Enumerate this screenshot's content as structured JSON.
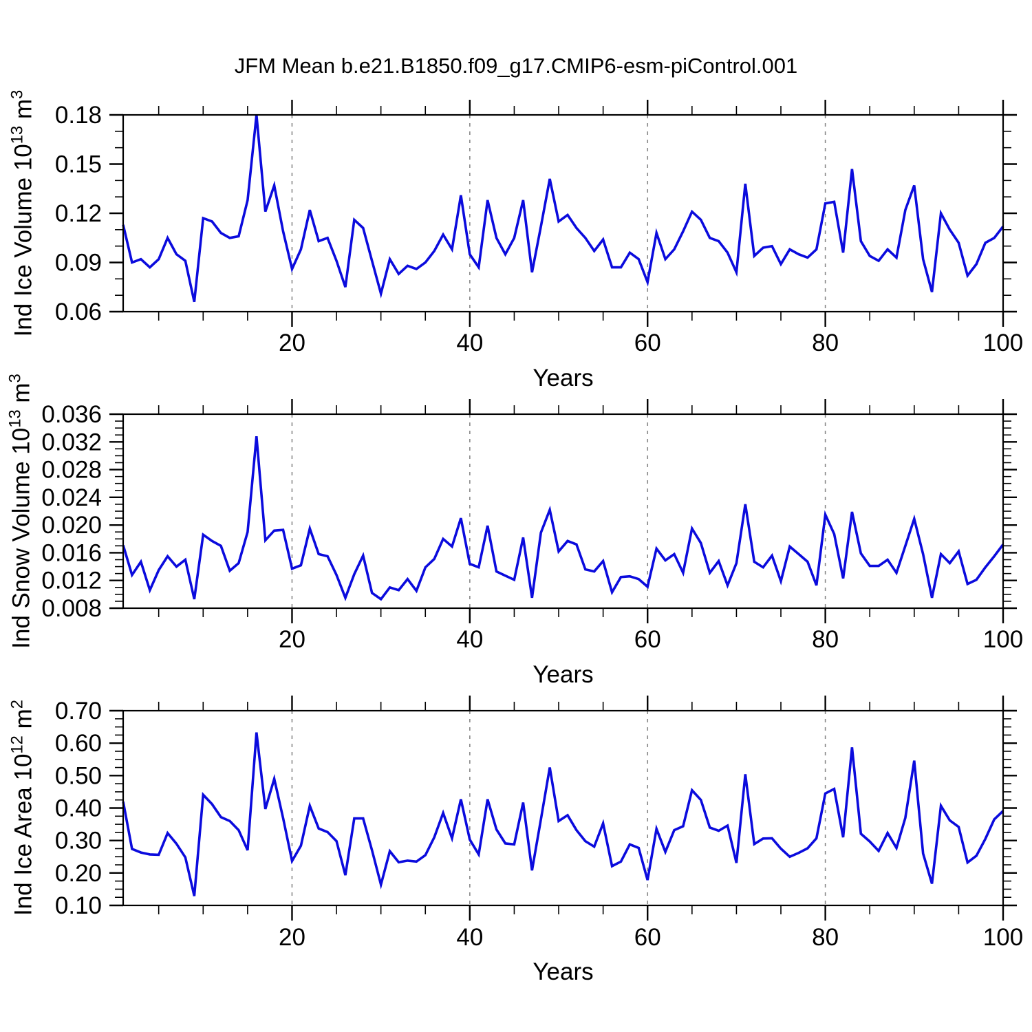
{
  "title": "JFM Mean b.e21.B1850.f09_g17.CMIP6-esm-piControl.001",
  "line_color": "#0b0bdd",
  "chart_data": [
    {
      "type": "line",
      "name": "ice-volume",
      "ylabel_parts": {
        "text1": "Ind Ice Volume 10",
        "sup1": "13",
        "text2": " m",
        "sup2": "3"
      },
      "xlabel": "Years",
      "x_start": 1,
      "x_end": 100,
      "xticks": [
        20,
        40,
        60,
        80,
        100
      ],
      "xtick_labels": [
        "20",
        "40",
        "60",
        "80",
        "100"
      ],
      "x_minor_step": 5,
      "grid_x": [
        20,
        40,
        60,
        80
      ],
      "ylim": [
        0.06,
        0.18
      ],
      "yticks": [
        0.06,
        0.09,
        0.12,
        0.15,
        0.18
      ],
      "ytick_labels": [
        "0.06",
        "0.09",
        "0.12",
        "0.15",
        "0.18"
      ],
      "y_minor_step": 0.01,
      "legend": "none",
      "grid": "vertical-dashed",
      "values": [
        0.113,
        0.09,
        0.092,
        0.087,
        0.092,
        0.105,
        0.095,
        0.091,
        0.066,
        0.117,
        0.115,
        0.108,
        0.105,
        0.106,
        0.128,
        0.18,
        0.121,
        0.137,
        0.109,
        0.086,
        0.098,
        0.122,
        0.103,
        0.105,
        0.091,
        0.075,
        0.116,
        0.111,
        0.091,
        0.071,
        0.092,
        0.083,
        0.088,
        0.086,
        0.09,
        0.097,
        0.107,
        0.098,
        0.131,
        0.095,
        0.087,
        0.128,
        0.105,
        0.095,
        0.105,
        0.128,
        0.084,
        0.112,
        0.141,
        0.115,
        0.119,
        0.111,
        0.105,
        0.097,
        0.104,
        0.087,
        0.087,
        0.096,
        0.092,
        0.078,
        0.108,
        0.092,
        0.098,
        0.109,
        0.121,
        0.116,
        0.105,
        0.103,
        0.096,
        0.084,
        0.138,
        0.094,
        0.099,
        0.1,
        0.089,
        0.098,
        0.095,
        0.093,
        0.098,
        0.126,
        0.127,
        0.096,
        0.147,
        0.103,
        0.094,
        0.091,
        0.098,
        0.093,
        0.122,
        0.137,
        0.092,
        0.072,
        0.12,
        0.11,
        0.102,
        0.082,
        0.089,
        0.102,
        0.105,
        0.112
      ]
    },
    {
      "type": "line",
      "name": "snow-volume",
      "ylabel_parts": {
        "text1": "Ind Snow Volume 10",
        "sup1": "13",
        "text2": " m",
        "sup2": "3"
      },
      "xlabel": "Years",
      "x_start": 1,
      "x_end": 100,
      "xticks": [
        20,
        40,
        60,
        80,
        100
      ],
      "xtick_labels": [
        "20",
        "40",
        "60",
        "80",
        "100"
      ],
      "x_minor_step": 5,
      "grid_x": [
        20,
        40,
        60,
        80
      ],
      "ylim": [
        0.008,
        0.036
      ],
      "yticks": [
        0.008,
        0.012,
        0.016,
        0.02,
        0.024,
        0.028,
        0.032,
        0.036
      ],
      "ytick_labels": [
        "0.008",
        "0.012",
        "0.016",
        "0.020",
        "0.024",
        "0.028",
        "0.032",
        "0.036"
      ],
      "y_minor_step": 0.001,
      "legend": "none",
      "grid": "vertical-dashed",
      "values": [
        0.0171,
        0.0128,
        0.0147,
        0.0106,
        0.0135,
        0.0155,
        0.014,
        0.015,
        0.0093,
        0.0186,
        0.0177,
        0.017,
        0.0134,
        0.0145,
        0.019,
        0.0328,
        0.0178,
        0.0192,
        0.0193,
        0.0137,
        0.0142,
        0.0195,
        0.0158,
        0.0155,
        0.0128,
        0.0095,
        0.0129,
        0.0156,
        0.0102,
        0.0093,
        0.011,
        0.0106,
        0.0122,
        0.0105,
        0.0139,
        0.0151,
        0.018,
        0.0169,
        0.021,
        0.0144,
        0.0139,
        0.0199,
        0.0133,
        0.0127,
        0.0121,
        0.0182,
        0.0095,
        0.0189,
        0.0222,
        0.0162,
        0.0177,
        0.0172,
        0.0136,
        0.0133,
        0.0148,
        0.0103,
        0.0125,
        0.0126,
        0.0122,
        0.0111,
        0.0166,
        0.0149,
        0.0158,
        0.0131,
        0.0195,
        0.0174,
        0.0131,
        0.0148,
        0.0113,
        0.0145,
        0.023,
        0.0147,
        0.0139,
        0.0156,
        0.0119,
        0.0169,
        0.0158,
        0.0147,
        0.0113,
        0.0215,
        0.0187,
        0.0123,
        0.0219,
        0.0159,
        0.0141,
        0.0141,
        0.015,
        0.0131,
        0.017,
        0.0209,
        0.0158,
        0.0095,
        0.0158,
        0.0145,
        0.0162,
        0.0115,
        0.0121,
        0.0139,
        0.0155,
        0.0172
      ]
    },
    {
      "type": "line",
      "name": "ice-area",
      "ylabel_parts": {
        "text1": "Ind Ice Area 10",
        "sup1": "12",
        "text2": " m",
        "sup2": "2"
      },
      "xlabel": "Years",
      "x_start": 1,
      "x_end": 100,
      "xticks": [
        20,
        40,
        60,
        80,
        100
      ],
      "xtick_labels": [
        "20",
        "40",
        "60",
        "80",
        "100"
      ],
      "x_minor_step": 5,
      "grid_x": [
        20,
        40,
        60,
        80
      ],
      "ylim": [
        0.1,
        0.7
      ],
      "yticks": [
        0.1,
        0.2,
        0.3,
        0.4,
        0.5,
        0.6,
        0.7
      ],
      "ytick_labels": [
        "0.10",
        "0.20",
        "0.30",
        "0.40",
        "0.50",
        "0.60",
        "0.70"
      ],
      "y_minor_step": 0.025,
      "legend": "none",
      "grid": "vertical-dashed",
      "values": [
        0.42,
        0.274,
        0.263,
        0.257,
        0.256,
        0.323,
        0.29,
        0.248,
        0.129,
        0.441,
        0.412,
        0.372,
        0.36,
        0.332,
        0.27,
        0.633,
        0.397,
        0.49,
        0.369,
        0.237,
        0.284,
        0.407,
        0.337,
        0.326,
        0.298,
        0.193,
        0.368,
        0.368,
        0.27,
        0.164,
        0.267,
        0.233,
        0.238,
        0.235,
        0.255,
        0.31,
        0.385,
        0.307,
        0.427,
        0.303,
        0.257,
        0.427,
        0.334,
        0.291,
        0.288,
        0.417,
        0.208,
        0.365,
        0.525,
        0.36,
        0.378,
        0.332,
        0.298,
        0.281,
        0.353,
        0.221,
        0.235,
        0.288,
        0.277,
        0.178,
        0.336,
        0.265,
        0.332,
        0.344,
        0.455,
        0.425,
        0.34,
        0.33,
        0.346,
        0.231,
        0.504,
        0.289,
        0.306,
        0.307,
        0.275,
        0.25,
        0.262,
        0.276,
        0.307,
        0.445,
        0.459,
        0.31,
        0.587,
        0.321,
        0.297,
        0.268,
        0.323,
        0.277,
        0.37,
        0.546,
        0.26,
        0.167,
        0.407,
        0.362,
        0.342,
        0.232,
        0.253,
        0.305,
        0.365,
        0.391
      ]
    }
  ]
}
